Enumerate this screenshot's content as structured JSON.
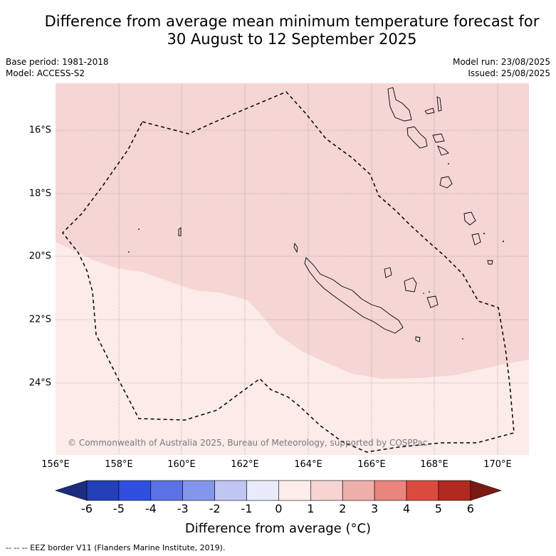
{
  "title_line1": "Difference from average mean minimum temperature forecast for",
  "title_line2": "30 August to 12 September 2025",
  "base_period": "Base period: 1981-2018",
  "model": "Model: ACCESS-S2",
  "model_run": "Model run: 23/08/2025",
  "issued": "Issued: 25/08/2025",
  "lat_labels": [
    "16°S",
    "18°S",
    "20°S",
    "22°S",
    "24°S"
  ],
  "lon_labels": [
    "156°E",
    "158°E",
    "160°E",
    "162°E",
    "164°E",
    "166°E",
    "168°E",
    "170°E"
  ],
  "copyright": "© Commonwealth of Australia 2025, Bureau of Meteorology, supported by COSPPac",
  "colorbar": {
    "ticks": [
      "-6",
      "-5",
      "-4",
      "-3",
      "-2",
      "-1",
      "0",
      "1",
      "2",
      "3",
      "4",
      "5",
      "6"
    ],
    "colors": [
      "#1c2d80",
      "#2340b8",
      "#2f4fe0",
      "#5a72e6",
      "#8496ec",
      "#bfc6f4",
      "#e8ebfa",
      "#fdeeec",
      "#f6d4d2",
      "#eeaeaa",
      "#e8857d",
      "#dc4a3e",
      "#b02a20",
      "#7a1a14"
    ],
    "label": "Difference from average (°C)"
  },
  "footer": "-- -- -- EEZ border V11 (Flanders Marine Institute, 2019).",
  "map_colors": {
    "anomaly_1_2": "#f5d6d4",
    "anomaly_0_1": "#fcebe9",
    "coast": "#000000"
  }
}
